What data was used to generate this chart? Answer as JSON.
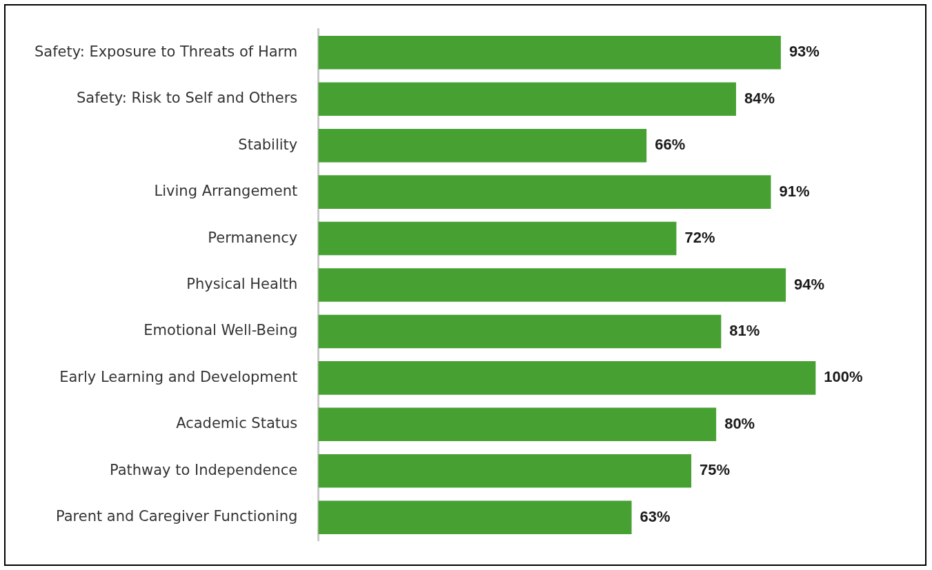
{
  "chart_data": {
    "type": "bar",
    "orientation": "horizontal",
    "categories": [
      "Safety: Exposure to Threats of Harm",
      "Safety: Risk to Self and Others",
      "Stability",
      "Living Arrangement",
      "Permanency",
      "Physical Health",
      "Emotional Well-Being",
      "Early Learning and Development",
      "Academic Status",
      "Pathway to Independence",
      "Parent and Caregiver Functioning"
    ],
    "values": [
      93,
      84,
      66,
      91,
      72,
      94,
      81,
      100,
      80,
      75,
      63
    ],
    "value_labels": [
      "93%",
      "84%",
      "66%",
      "91%",
      "72%",
      "94%",
      "81%",
      "100%",
      "80%",
      "75%",
      "63%"
    ],
    "color": "#46a032"
  }
}
